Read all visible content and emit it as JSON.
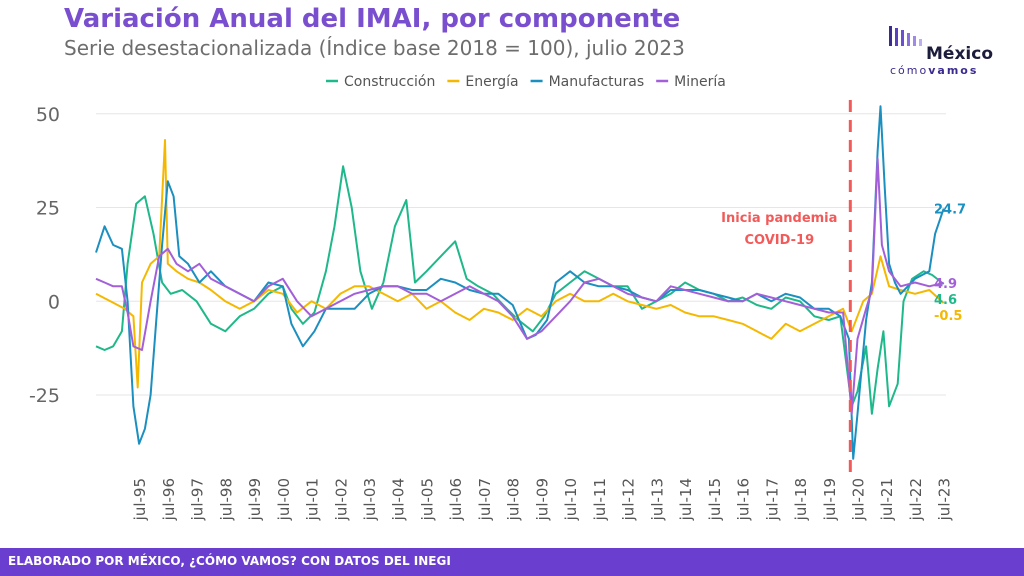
{
  "header": {
    "title": "Variación Anual del IMAI, por componente",
    "subtitle": "Serie desestacionalizada (Índice base 2018 = 100), julio 2023"
  },
  "logo": {
    "word": "México",
    "tag_regular": "cómo",
    "tag_bold": "vamos"
  },
  "footer": {
    "text": "ELABORADO POR MÉXICO, ¿CÓMO VAMOS? CON DATOS DEL INEGI"
  },
  "colors": {
    "construccion": "#1fb88a",
    "energia": "#f5b800",
    "manufacturas": "#1b8fc0",
    "mineria": "#a35fd8",
    "annotation": "#f25a5a",
    "title": "#7a4fcf",
    "footer": "#6a3fd0"
  },
  "chart_data": {
    "type": "line",
    "ylim": [
      -45,
      55
    ],
    "yticks": [
      -25,
      0,
      25,
      50
    ],
    "ytick_labels": [
      "-25",
      "0",
      "25",
      "50"
    ],
    "grid": true,
    "legend_position": "top",
    "xtick_labels": [
      "jul-95",
      "jul-96",
      "jul-97",
      "jul-98",
      "jul-99",
      "jul-00",
      "jul-01",
      "jul-02",
      "jul-03",
      "jul-04",
      "jul-05",
      "jul-06",
      "jul-07",
      "jul-08",
      "jul-09",
      "jul-10",
      "jul-11",
      "jul-12",
      "jul-13",
      "jul-14",
      "jul-15",
      "jul-16",
      "jul-17",
      "jul-18",
      "jul-19",
      "jul-20",
      "jul-21",
      "jul-22",
      "jul-23"
    ],
    "xtick_years": [
      1995.5,
      1996.5,
      1997.5,
      1998.5,
      1999.5,
      2000.5,
      2001.5,
      2002.5,
      2003.5,
      2004.5,
      2005.5,
      2006.5,
      2007.5,
      2008.5,
      2009.5,
      2010.5,
      2011.5,
      2012.5,
      2013.5,
      2014.5,
      2015.5,
      2016.5,
      2017.5,
      2018.5,
      2019.5,
      2020.5,
      2021.5,
      2022.5,
      2023.5
    ],
    "xlim": [
      1994.0,
      2023.58
    ],
    "annotation": {
      "x": 2020.25,
      "text_line1": "Inicia pandemia",
      "text_line2": "COVID-19"
    },
    "series": [
      {
        "name": "Construcción",
        "color": "#1fb88a",
        "end_label": "4.6",
        "points": [
          [
            1994.0,
            -12
          ],
          [
            1994.3,
            -13
          ],
          [
            1994.6,
            -12
          ],
          [
            1994.9,
            -8
          ],
          [
            1995.1,
            10
          ],
          [
            1995.4,
            26
          ],
          [
            1995.7,
            28
          ],
          [
            1996.0,
            18
          ],
          [
            1996.3,
            5
          ],
          [
            1996.6,
            2
          ],
          [
            1997.0,
            3
          ],
          [
            1997.5,
            0
          ],
          [
            1998.0,
            -6
          ],
          [
            1998.5,
            -8
          ],
          [
            1999.0,
            -4
          ],
          [
            1999.5,
            -2
          ],
          [
            2000.0,
            2
          ],
          [
            2000.5,
            4
          ],
          [
            2000.8,
            -2
          ],
          [
            2001.2,
            -6
          ],
          [
            2001.6,
            -3
          ],
          [
            2002.0,
            8
          ],
          [
            2002.3,
            20
          ],
          [
            2002.6,
            36
          ],
          [
            2002.9,
            25
          ],
          [
            2003.2,
            8
          ],
          [
            2003.6,
            -2
          ],
          [
            2004.0,
            5
          ],
          [
            2004.4,
            20
          ],
          [
            2004.8,
            27
          ],
          [
            2005.1,
            5
          ],
          [
            2005.5,
            8
          ],
          [
            2006.0,
            12
          ],
          [
            2006.5,
            16
          ],
          [
            2006.9,
            6
          ],
          [
            2007.3,
            4
          ],
          [
            2007.8,
            2
          ],
          [
            2008.3,
            -2
          ],
          [
            2008.7,
            -5
          ],
          [
            2009.2,
            -8
          ],
          [
            2009.6,
            -4
          ],
          [
            2010.0,
            2
          ],
          [
            2010.5,
            5
          ],
          [
            2011.0,
            8
          ],
          [
            2011.5,
            6
          ],
          [
            2012.0,
            4
          ],
          [
            2012.5,
            4
          ],
          [
            2013.0,
            -2
          ],
          [
            2013.5,
            0
          ],
          [
            2014.0,
            2
          ],
          [
            2014.5,
            5
          ],
          [
            2015.0,
            3
          ],
          [
            2015.5,
            2
          ],
          [
            2016.0,
            0
          ],
          [
            2016.5,
            1
          ],
          [
            2017.0,
            -1
          ],
          [
            2017.5,
            -2
          ],
          [
            2018.0,
            1
          ],
          [
            2018.5,
            0
          ],
          [
            2019.0,
            -4
          ],
          [
            2019.5,
            -5
          ],
          [
            2019.9,
            -4
          ],
          [
            2020.3,
            -28
          ],
          [
            2020.5,
            -24
          ],
          [
            2020.8,
            -12
          ],
          [
            2021.0,
            -30
          ],
          [
            2021.2,
            -18
          ],
          [
            2021.4,
            -8
          ],
          [
            2021.6,
            -28
          ],
          [
            2021.9,
            -22
          ],
          [
            2022.1,
            0
          ],
          [
            2022.4,
            6
          ],
          [
            2022.8,
            8
          ],
          [
            2023.1,
            7
          ],
          [
            2023.5,
            4.6
          ]
        ]
      },
      {
        "name": "Energía",
        "color": "#f5b800",
        "end_label": "-0.5",
        "points": [
          [
            1994.0,
            2
          ],
          [
            1994.5,
            0
          ],
          [
            1995.0,
            -2
          ],
          [
            1995.3,
            -4
          ],
          [
            1995.45,
            -23
          ],
          [
            1995.6,
            5
          ],
          [
            1995.9,
            10
          ],
          [
            1996.2,
            12
          ],
          [
            1996.4,
            43
          ],
          [
            1996.5,
            10
          ],
          [
            1996.8,
            8
          ],
          [
            1997.2,
            6
          ],
          [
            1997.6,
            5
          ],
          [
            1998.0,
            3
          ],
          [
            1998.5,
            0
          ],
          [
            1999.0,
            -2
          ],
          [
            1999.5,
            0
          ],
          [
            2000.0,
            3
          ],
          [
            2000.5,
            2
          ],
          [
            2001.0,
            -3
          ],
          [
            2001.5,
            0
          ],
          [
            2002.0,
            -2
          ],
          [
            2002.5,
            2
          ],
          [
            2003.0,
            4
          ],
          [
            2003.5,
            4
          ],
          [
            2004.0,
            2
          ],
          [
            2004.5,
            0
          ],
          [
            2005.0,
            2
          ],
          [
            2005.5,
            -2
          ],
          [
            2006.0,
            0
          ],
          [
            2006.5,
            -3
          ],
          [
            2007.0,
            -5
          ],
          [
            2007.5,
            -2
          ],
          [
            2008.0,
            -3
          ],
          [
            2008.5,
            -5
          ],
          [
            2009.0,
            -2
          ],
          [
            2009.5,
            -4
          ],
          [
            2010.0,
            0
          ],
          [
            2010.5,
            2
          ],
          [
            2011.0,
            0
          ],
          [
            2011.5,
            0
          ],
          [
            2012.0,
            2
          ],
          [
            2012.5,
            0
          ],
          [
            2013.0,
            -1
          ],
          [
            2013.5,
            -2
          ],
          [
            2014.0,
            -1
          ],
          [
            2014.5,
            -3
          ],
          [
            2015.0,
            -4
          ],
          [
            2015.5,
            -4
          ],
          [
            2016.0,
            -5
          ],
          [
            2016.5,
            -6
          ],
          [
            2017.0,
            -8
          ],
          [
            2017.5,
            -10
          ],
          [
            2018.0,
            -6
          ],
          [
            2018.5,
            -8
          ],
          [
            2019.0,
            -6
          ],
          [
            2019.5,
            -4
          ],
          [
            2020.0,
            -2
          ],
          [
            2020.3,
            -8
          ],
          [
            2020.7,
            0
          ],
          [
            2021.0,
            2
          ],
          [
            2021.3,
            12
          ],
          [
            2021.6,
            4
          ],
          [
            2022.0,
            3
          ],
          [
            2022.5,
            2
          ],
          [
            2023.0,
            3
          ],
          [
            2023.5,
            -0.5
          ]
        ]
      },
      {
        "name": "Manufacturas",
        "color": "#1b8fc0",
        "end_label": "24.7",
        "points": [
          [
            1994.0,
            13
          ],
          [
            1994.3,
            20
          ],
          [
            1994.6,
            15
          ],
          [
            1994.9,
            14
          ],
          [
            1995.1,
            0
          ],
          [
            1995.3,
            -28
          ],
          [
            1995.5,
            -38
          ],
          [
            1995.7,
            -34
          ],
          [
            1995.9,
            -25
          ],
          [
            1996.1,
            -5
          ],
          [
            1996.3,
            15
          ],
          [
            1996.5,
            32
          ],
          [
            1996.7,
            28
          ],
          [
            1996.9,
            12
          ],
          [
            1997.2,
            10
          ],
          [
            1997.6,
            5
          ],
          [
            1998.0,
            8
          ],
          [
            1998.5,
            4
          ],
          [
            1999.0,
            2
          ],
          [
            1999.5,
            0
          ],
          [
            2000.0,
            5
          ],
          [
            2000.5,
            4
          ],
          [
            2000.8,
            -6
          ],
          [
            2001.2,
            -12
          ],
          [
            2001.6,
            -8
          ],
          [
            2002.0,
            -2
          ],
          [
            2002.5,
            -2
          ],
          [
            2003.0,
            -2
          ],
          [
            2003.5,
            2
          ],
          [
            2004.0,
            4
          ],
          [
            2004.5,
            4
          ],
          [
            2005.0,
            3
          ],
          [
            2005.5,
            3
          ],
          [
            2006.0,
            6
          ],
          [
            2006.5,
            5
          ],
          [
            2007.0,
            3
          ],
          [
            2007.5,
            2
          ],
          [
            2008.0,
            2
          ],
          [
            2008.5,
            -1
          ],
          [
            2009.0,
            -10
          ],
          [
            2009.3,
            -9
          ],
          [
            2009.7,
            -5
          ],
          [
            2010.0,
            5
          ],
          [
            2010.5,
            8
          ],
          [
            2011.0,
            5
          ],
          [
            2011.5,
            4
          ],
          [
            2012.0,
            4
          ],
          [
            2012.5,
            3
          ],
          [
            2013.0,
            1
          ],
          [
            2013.5,
            0
          ],
          [
            2014.0,
            3
          ],
          [
            2014.5,
            3
          ],
          [
            2015.0,
            3
          ],
          [
            2015.5,
            2
          ],
          [
            2016.0,
            1
          ],
          [
            2016.5,
            0
          ],
          [
            2017.0,
            2
          ],
          [
            2017.5,
            0
          ],
          [
            2018.0,
            2
          ],
          [
            2018.5,
            1
          ],
          [
            2019.0,
            -2
          ],
          [
            2019.5,
            -2
          ],
          [
            2019.9,
            -4
          ],
          [
            2020.2,
            -10
          ],
          [
            2020.35,
            -42
          ],
          [
            2020.5,
            -30
          ],
          [
            2020.8,
            -5
          ],
          [
            2021.0,
            5
          ],
          [
            2021.2,
            40
          ],
          [
            2021.3,
            52
          ],
          [
            2021.45,
            30
          ],
          [
            2021.6,
            10
          ],
          [
            2021.8,
            5
          ],
          [
            2022.0,
            2
          ],
          [
            2022.5,
            6
          ],
          [
            2023.0,
            8
          ],
          [
            2023.2,
            18
          ],
          [
            2023.5,
            24.7
          ]
        ]
      },
      {
        "name": "Minería",
        "color": "#a35fd8",
        "end_label": "4.9",
        "points": [
          [
            1994.0,
            6
          ],
          [
            1994.3,
            5
          ],
          [
            1994.6,
            4
          ],
          [
            1994.9,
            4
          ],
          [
            1995.1,
            -3
          ],
          [
            1995.3,
            -12
          ],
          [
            1995.6,
            -13
          ],
          [
            1995.9,
            0
          ],
          [
            1996.2,
            12
          ],
          [
            1996.5,
            14
          ],
          [
            1996.8,
            10
          ],
          [
            1997.2,
            8
          ],
          [
            1997.6,
            10
          ],
          [
            1998.0,
            6
          ],
          [
            1998.5,
            4
          ],
          [
            1999.0,
            2
          ],
          [
            1999.5,
            0
          ],
          [
            2000.0,
            4
          ],
          [
            2000.5,
            6
          ],
          [
            2001.0,
            0
          ],
          [
            2001.5,
            -4
          ],
          [
            2002.0,
            -2
          ],
          [
            2002.5,
            0
          ],
          [
            2003.0,
            2
          ],
          [
            2003.5,
            3
          ],
          [
            2004.0,
            4
          ],
          [
            2004.5,
            4
          ],
          [
            2005.0,
            2
          ],
          [
            2005.5,
            2
          ],
          [
            2006.0,
            0
          ],
          [
            2006.5,
            2
          ],
          [
            2007.0,
            4
          ],
          [
            2007.5,
            2
          ],
          [
            2008.0,
            0
          ],
          [
            2008.5,
            -4
          ],
          [
            2009.0,
            -10
          ],
          [
            2009.5,
            -8
          ],
          [
            2010.0,
            -4
          ],
          [
            2010.5,
            0
          ],
          [
            2011.0,
            5
          ],
          [
            2011.5,
            6
          ],
          [
            2012.0,
            4
          ],
          [
            2012.5,
            2
          ],
          [
            2013.0,
            1
          ],
          [
            2013.5,
            0
          ],
          [
            2014.0,
            4
          ],
          [
            2014.5,
            3
          ],
          [
            2015.0,
            2
          ],
          [
            2015.5,
            1
          ],
          [
            2016.0,
            0
          ],
          [
            2016.5,
            0
          ],
          [
            2017.0,
            2
          ],
          [
            2017.5,
            1
          ],
          [
            2018.0,
            0
          ],
          [
            2018.5,
            -1
          ],
          [
            2019.0,
            -2
          ],
          [
            2019.5,
            -3
          ],
          [
            2020.0,
            -3
          ],
          [
            2020.3,
            -30
          ],
          [
            2020.5,
            -10
          ],
          [
            2020.8,
            -2
          ],
          [
            2021.0,
            3
          ],
          [
            2021.2,
            38
          ],
          [
            2021.35,
            15
          ],
          [
            2021.6,
            8
          ],
          [
            2022.0,
            4
          ],
          [
            2022.5,
            5
          ],
          [
            2023.0,
            4
          ],
          [
            2023.5,
            4.9
          ]
        ]
      }
    ]
  }
}
